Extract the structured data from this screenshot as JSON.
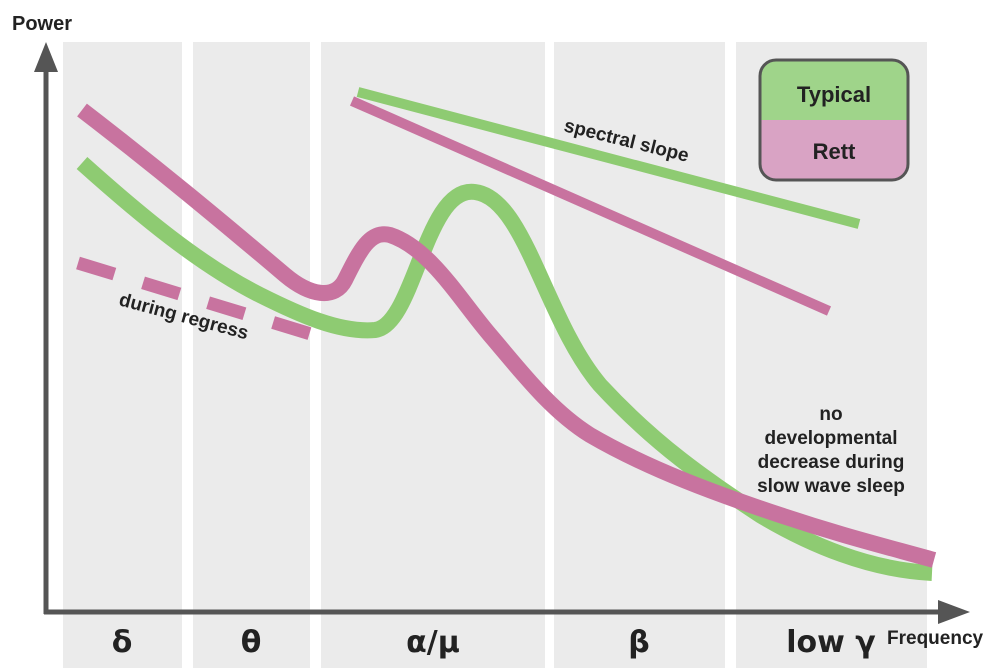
{
  "axes": {
    "y_label": "Power",
    "x_label": "Frequency"
  },
  "bands": [
    "δ",
    "θ",
    "α/μ",
    "β",
    "low γ"
  ],
  "legend": {
    "typical": "Typical",
    "rett": "Rett"
  },
  "annotations": {
    "during_regress": "during regress",
    "spectral_slope": "spectral slope",
    "no_decrease": [
      "no",
      "developmental",
      "decrease during",
      "slow wave sleep"
    ]
  },
  "colors": {
    "typical": "#8ecb72",
    "rett": "#c8739f",
    "band_bg": "#ebebeb",
    "axis": "#555555",
    "legend_typical_bg": "#9fd48a",
    "legend_rett_bg": "#d9a3c4"
  }
}
